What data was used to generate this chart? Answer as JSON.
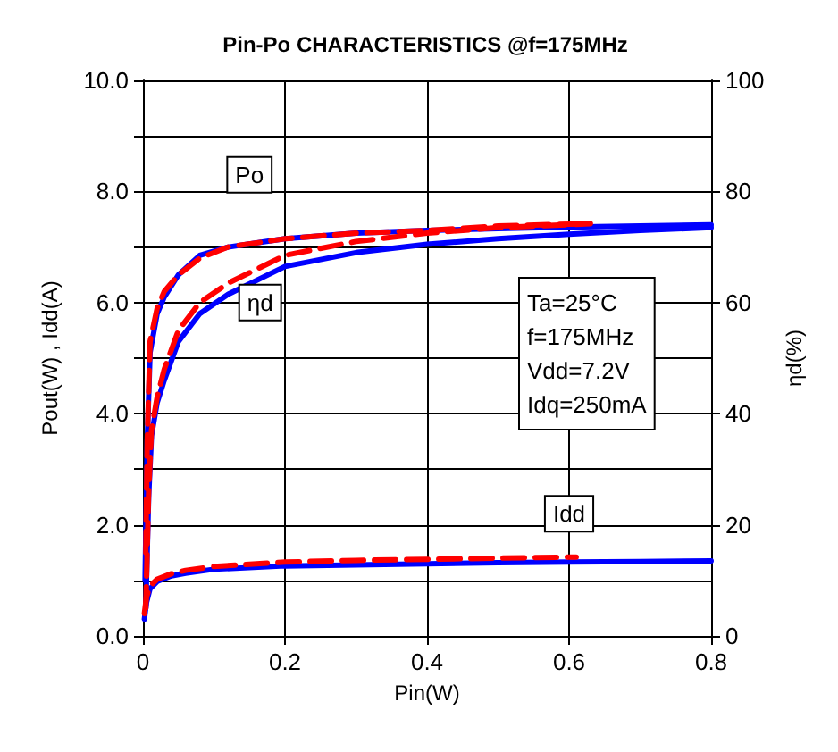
{
  "chart_data": {
    "type": "line",
    "title": "Pin-Po CHARACTERISTICS @f=175MHz",
    "xlabel": "Pin(W)",
    "ylabel": "Pout(W) , Idd(A)",
    "y2label": "ηd(%)",
    "xlim": [
      0,
      0.8
    ],
    "xticks": [
      0,
      0.2,
      0.4,
      0.6,
      0.8
    ],
    "ylim": [
      0,
      10
    ],
    "yticks": [
      {
        "value": 0,
        "label": "0.0"
      },
      {
        "value": 1,
        "label": null
      },
      {
        "value": 2,
        "label": "2.0"
      },
      {
        "value": 3,
        "label": null
      },
      {
        "value": 4,
        "label": "4.0"
      },
      {
        "value": 5,
        "label": null
      },
      {
        "value": 6,
        "label": "6.0"
      },
      {
        "value": 7,
        "label": null
      },
      {
        "value": 8,
        "label": "8.0"
      },
      {
        "value": 9,
        "label": null
      },
      {
        "value": 10,
        "label": "10.0"
      }
    ],
    "y2lim": [
      0,
      100
    ],
    "y2ticks": [
      0,
      20,
      40,
      60,
      80,
      100
    ],
    "grid": true,
    "marker": "none",
    "series": [
      {
        "color": "#0000ff",
        "line_style": "solid",
        "x": [
          0.003,
          0.006,
          0.01,
          0.02,
          0.03,
          0.05,
          0.08,
          0.12,
          0.2,
          0.3,
          0.4,
          0.5,
          0.6,
          0.7,
          0.8
        ],
        "values": [
          1.0,
          3.5,
          5.1,
          5.8,
          6.1,
          6.5,
          6.85,
          7.0,
          7.15,
          7.25,
          7.3,
          7.33,
          7.36,
          7.38,
          7.4
        ]
      },
      {
        "color": "#0000ff",
        "line_style": "solid",
        "axis": "y2",
        "x": [
          0.004,
          0.008,
          0.012,
          0.02,
          0.03,
          0.05,
          0.08,
          0.12,
          0.2,
          0.3,
          0.4,
          0.5,
          0.6,
          0.7,
          0.8
        ],
        "values": [
          5,
          25,
          36,
          42,
          46,
          53,
          58,
          61.5,
          66.5,
          69,
          70.5,
          71.5,
          72.3,
          73,
          73.5
        ]
      },
      {
        "color": "#0000ff",
        "line_style": "solid",
        "x": [
          0.002,
          0.005,
          0.01,
          0.02,
          0.04,
          0.06,
          0.1,
          0.2,
          0.3,
          0.4,
          0.5,
          0.6,
          0.7,
          0.8
        ],
        "values": [
          0.3,
          0.6,
          0.85,
          0.98,
          1.08,
          1.13,
          1.2,
          1.26,
          1.28,
          1.3,
          1.32,
          1.33,
          1.34,
          1.35
        ]
      },
      {
        "color": "#ff0000",
        "line_style": "dashed",
        "x": [
          0.004,
          0.006,
          0.01,
          0.02,
          0.03,
          0.05,
          0.08,
          0.12,
          0.2,
          0.3,
          0.4,
          0.5,
          0.63
        ],
        "values": [
          1.5,
          3.5,
          5.3,
          5.9,
          6.2,
          6.5,
          6.8,
          7.0,
          7.15,
          7.25,
          7.3,
          7.38,
          7.42
        ]
      },
      {
        "color": "#ff0000",
        "line_style": "dashed",
        "axis": "y2",
        "x": [
          0.004,
          0.008,
          0.012,
          0.02,
          0.03,
          0.05,
          0.08,
          0.12,
          0.2,
          0.3,
          0.4,
          0.5,
          0.63
        ],
        "values": [
          5,
          26,
          37,
          43,
          48,
          55,
          60,
          63.5,
          68.5,
          71,
          72.5,
          73.5,
          74.2
        ]
      },
      {
        "color": "#ff0000",
        "line_style": "dashed",
        "x": [
          0.002,
          0.005,
          0.01,
          0.02,
          0.04,
          0.06,
          0.1,
          0.2,
          0.3,
          0.4,
          0.5,
          0.61
        ],
        "values": [
          0.4,
          0.7,
          0.9,
          1.02,
          1.12,
          1.18,
          1.25,
          1.33,
          1.36,
          1.38,
          1.4,
          1.42
        ]
      }
    ],
    "annotations": [
      {
        "text": "Po",
        "x": 0.15,
        "y": 8.3
      },
      {
        "text": "ηd",
        "x": 0.165,
        "y": 6.0
      },
      {
        "text": "Idd",
        "x": 0.6,
        "y": 2.2
      },
      "Ta=25°C\nf=175MHz\nVdd=7.2V\nIdq=250mA"
    ]
  }
}
